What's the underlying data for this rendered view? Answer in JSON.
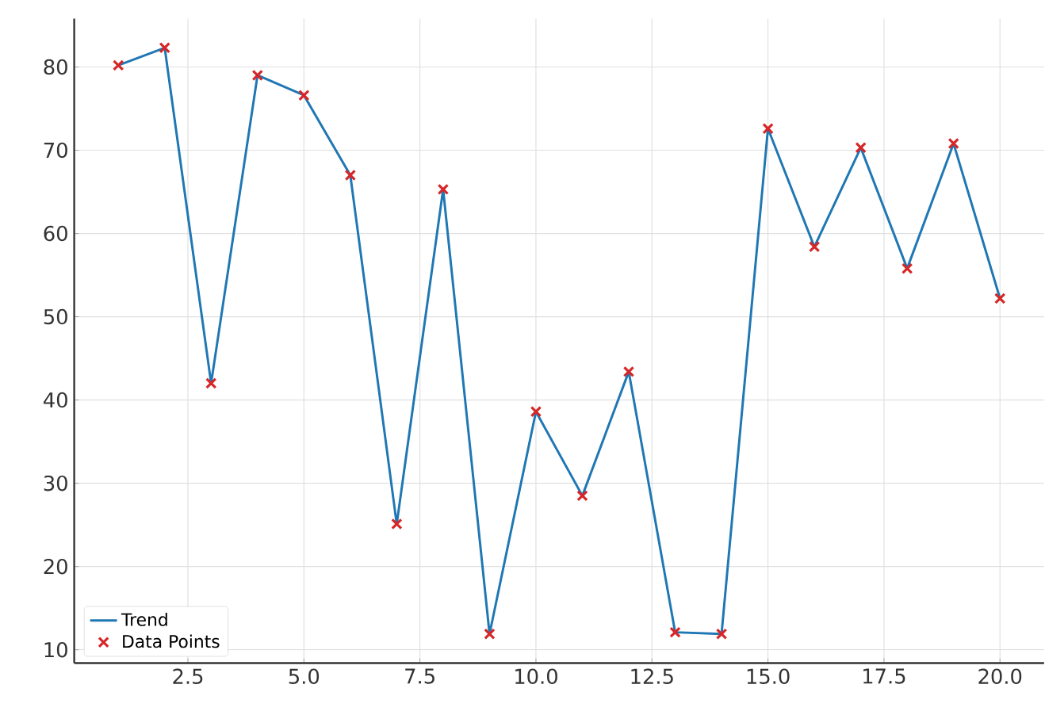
{
  "chart_data": {
    "type": "line",
    "x": [
      1,
      2,
      3,
      4,
      5,
      6,
      7,
      8,
      9,
      10,
      11,
      12,
      13,
      14,
      15,
      16,
      17,
      18,
      19,
      20
    ],
    "series": [
      {
        "name": "Trend",
        "color": "#1f77b4",
        "marker": "none",
        "line_style": "solid",
        "values": [
          80.2,
          82.3,
          42.0,
          79.0,
          76.6,
          67.0,
          25.1,
          65.3,
          11.9,
          38.6,
          28.5,
          43.4,
          12.1,
          11.9,
          72.6,
          58.4,
          70.3,
          55.8,
          70.8,
          52.2
        ]
      },
      {
        "name": "Data Points",
        "type": "scatter",
        "color": "#d62728",
        "marker": "cross",
        "values": [
          80.2,
          82.3,
          42.0,
          79.0,
          76.6,
          67.0,
          25.1,
          65.3,
          11.9,
          38.6,
          28.5,
          43.4,
          12.1,
          11.9,
          72.6,
          58.4,
          70.3,
          55.8,
          70.8,
          52.2
        ]
      }
    ],
    "xlim": [
      0.05,
      20.95
    ],
    "ylim": [
      8.4,
      85.8
    ],
    "xticks": [
      {
        "value": 2.5,
        "label": "2.5"
      },
      {
        "value": 5,
        "label": "5.0"
      },
      {
        "value": 7.5,
        "label": "7.5"
      },
      {
        "value": 10,
        "label": "10.0"
      },
      {
        "value": 12.5,
        "label": "12.5"
      },
      {
        "value": 15,
        "label": "15.0"
      },
      {
        "value": 17.5,
        "label": "17.5"
      },
      {
        "value": 20,
        "label": "20.0"
      }
    ],
    "yticks": [
      10,
      20,
      30,
      40,
      50,
      60,
      70,
      80
    ],
    "grid": true,
    "legend": "bottom left"
  }
}
